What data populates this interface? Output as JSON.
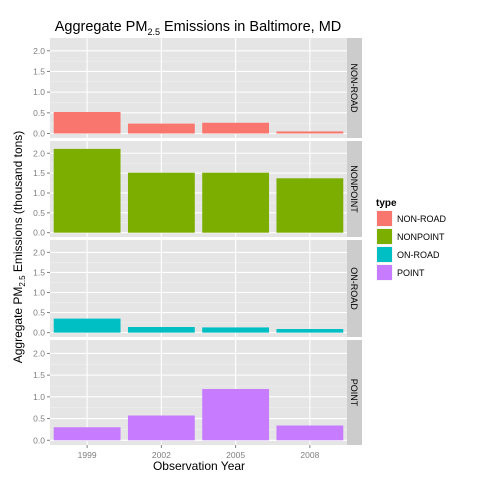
{
  "chart_data": {
    "type": "bar",
    "title_main": "Aggregate PM",
    "title_sub": "2.5",
    "title_rest": " Emissions in Baltimore, MD",
    "xlabel": "Observation Year",
    "ylabel_main": "Aggregate PM",
    "ylabel_sub": "2.5",
    "ylabel_rest": " Emissions (thousand tons)",
    "categories": [
      "1999",
      "2002",
      "2005",
      "2008"
    ],
    "yticks": [
      "0.0",
      "0.5",
      "1.0",
      "1.5",
      "2.0"
    ],
    "ylim": [
      0,
      2.2
    ],
    "grid": true,
    "legend_title": "type",
    "legend_position": "right",
    "series": [
      {
        "name": "NON-ROAD",
        "color": "#F8766D",
        "values": [
          0.52,
          0.24,
          0.26,
          0.05
        ]
      },
      {
        "name": "NONPOINT",
        "color": "#7CAE00",
        "values": [
          2.11,
          1.51,
          1.51,
          1.37
        ]
      },
      {
        "name": "ON-ROAD",
        "color": "#00BFC4",
        "values": [
          0.35,
          0.14,
          0.13,
          0.09
        ]
      },
      {
        "name": "POINT",
        "color": "#C77CFF",
        "values": [
          0.3,
          0.57,
          1.18,
          0.34
        ]
      }
    ]
  }
}
